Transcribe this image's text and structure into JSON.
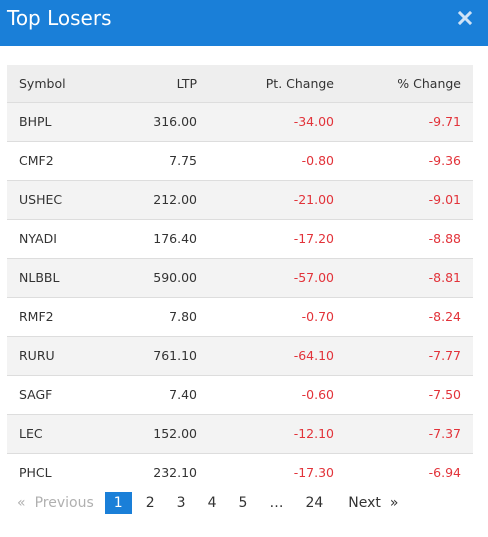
{
  "dialog": {
    "title": "Top Losers",
    "close_icon": "close-icon"
  },
  "table": {
    "headers": {
      "symbol": "Symbol",
      "ltp": "LTP",
      "pt_change": "Pt. Change",
      "pct_change": "% Change"
    },
    "rows": [
      {
        "symbol": "BHPL",
        "ltp": "316.00",
        "pt_change": "-34.00",
        "pct_change": "-9.71"
      },
      {
        "symbol": "CMF2",
        "ltp": "7.75",
        "pt_change": "-0.80",
        "pct_change": "-9.36"
      },
      {
        "symbol": "USHEC",
        "ltp": "212.00",
        "pt_change": "-21.00",
        "pct_change": "-9.01"
      },
      {
        "symbol": "NYADI",
        "ltp": "176.40",
        "pt_change": "-17.20",
        "pct_change": "-8.88"
      },
      {
        "symbol": "NLBBL",
        "ltp": "590.00",
        "pt_change": "-57.00",
        "pct_change": "-8.81"
      },
      {
        "symbol": "RMF2",
        "ltp": "7.80",
        "pt_change": "-0.70",
        "pct_change": "-8.24"
      },
      {
        "symbol": "RURU",
        "ltp": "761.10",
        "pt_change": "-64.10",
        "pct_change": "-7.77"
      },
      {
        "symbol": "SAGF",
        "ltp": "7.40",
        "pt_change": "-0.60",
        "pct_change": "-7.50"
      },
      {
        "symbol": "LEC",
        "ltp": "152.00",
        "pt_change": "-12.10",
        "pct_change": "-7.37"
      },
      {
        "symbol": "PHCL",
        "ltp": "232.10",
        "pt_change": "-17.30",
        "pct_change": "-6.94"
      }
    ]
  },
  "pagination": {
    "prev_arrow": "«",
    "prev_label": "Previous",
    "pages": [
      "1",
      "2",
      "3",
      "4",
      "5"
    ],
    "current_page": "1",
    "ellipsis": "…",
    "last_page": "24",
    "next_label": "Next",
    "next_arrow": "»"
  },
  "colors": {
    "header_bg": "#1a7fd8",
    "negative": "#e2333a",
    "active_page": "#1a7fd8"
  }
}
